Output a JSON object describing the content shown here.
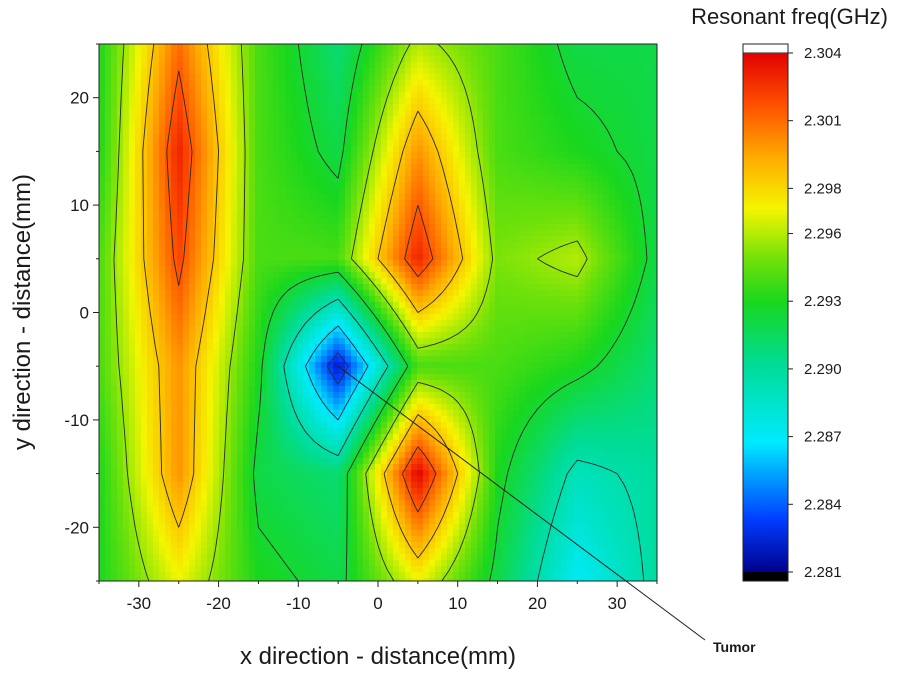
{
  "chart_data": {
    "type": "heatmap",
    "title": "",
    "xlabel": "x direction - distance(mm)",
    "ylabel": "y direction - distance(mm)",
    "xlim": [
      -35,
      35
    ],
    "ylim": [
      -25,
      25
    ],
    "x_ticks": [
      -30,
      -20,
      -10,
      0,
      10,
      20,
      30
    ],
    "y_ticks": [
      -20,
      -10,
      0,
      10,
      20
    ],
    "colorbar": {
      "title": "Resonant freq(GHz)",
      "min": 2.281,
      "max": 2.304,
      "ticks": [
        2.304,
        2.301,
        2.298,
        2.296,
        2.293,
        2.29,
        2.287,
        2.284,
        2.281
      ],
      "tick_labels": [
        "2.304",
        "2.301",
        "2.298",
        "2.296",
        "2.293",
        "2.290",
        "2.287",
        "2.284",
        "2.281"
      ]
    },
    "x": [
      -35,
      -25,
      -15,
      -5,
      5,
      15,
      25,
      35
    ],
    "y": [
      25,
      15,
      5,
      -5,
      -15,
      -25
    ],
    "z": [
      [
        2.293,
        2.301,
        2.294,
        2.291,
        2.296,
        2.294,
        2.292,
        2.292
      ],
      [
        2.293,
        2.303,
        2.294,
        2.292,
        2.3,
        2.294,
        2.293,
        2.292
      ],
      [
        2.294,
        2.302,
        2.294,
        2.294,
        2.303,
        2.295,
        2.296,
        2.292
      ],
      [
        2.294,
        2.3,
        2.293,
        2.282,
        2.294,
        2.294,
        2.293,
        2.291
      ],
      [
        2.293,
        2.3,
        2.292,
        2.291,
        2.304,
        2.293,
        2.289,
        2.29
      ],
      [
        2.293,
        2.297,
        2.293,
        2.292,
        2.297,
        2.292,
        2.287,
        2.29
      ]
    ],
    "annotations": [
      {
        "text": "Tumor",
        "x": -5,
        "y": -5
      }
    ]
  }
}
